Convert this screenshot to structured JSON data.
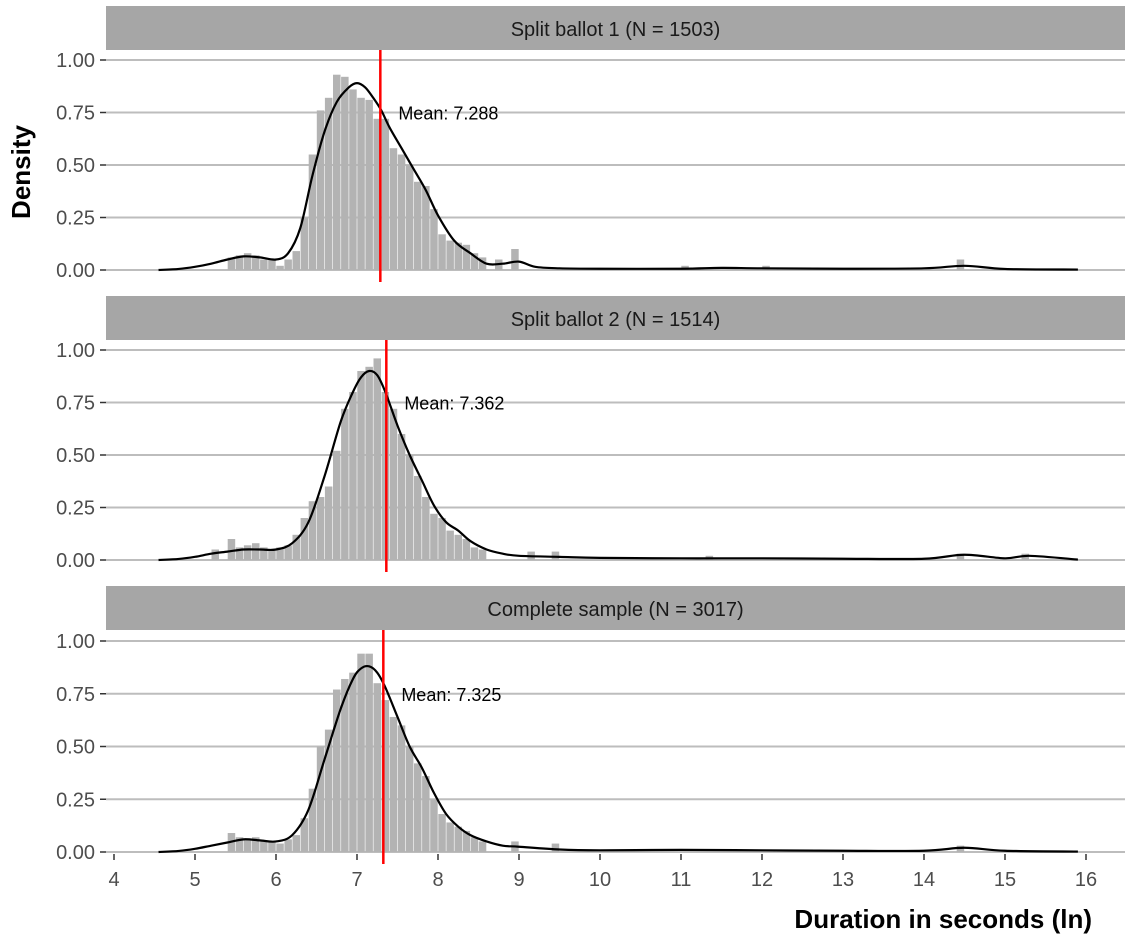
{
  "colors": {
    "strip": "#a6a6a6",
    "grid": "#bdbdbd",
    "bar": "#b3b3b3",
    "density": "#000000",
    "mean": "#ff0000"
  },
  "chart_data": {
    "type": "bar",
    "xlabel": "Duration in seconds (ln)",
    "ylabel": "Density",
    "xlim": [
      4,
      16
    ],
    "ylim": [
      0,
      1
    ],
    "x_ticks": [
      4,
      5,
      6,
      7,
      8,
      9,
      10,
      11,
      12,
      13,
      14,
      15,
      16
    ],
    "y_ticks": [
      0,
      0.25,
      0.5,
      0.75,
      1
    ],
    "y_tick_labels": [
      "0.00",
      "0.25",
      "0.50",
      "0.75",
      "1.00"
    ],
    "grid": "horizontal",
    "panels": [
      {
        "strip_label": "Split ballot 1 (N = 1503)",
        "mean": 7.288,
        "mean_label": "Mean: 7.288",
        "histogram": {
          "x": [
            5.45,
            5.55,
            5.65,
            5.75,
            5.85,
            5.95,
            6.05,
            6.15,
            6.25,
            6.35,
            6.45,
            6.55,
            6.65,
            6.75,
            6.85,
            6.95,
            7.05,
            7.15,
            7.25,
            7.35,
            7.45,
            7.55,
            7.65,
            7.75,
            7.85,
            7.95,
            8.05,
            8.15,
            8.25,
            8.35,
            8.45,
            8.55,
            8.75,
            8.95,
            11.05,
            12.05,
            14.45
          ],
          "values": [
            0.06,
            0.07,
            0.08,
            0.07,
            0.05,
            0.05,
            0.02,
            0.05,
            0.09,
            0.25,
            0.55,
            0.76,
            0.82,
            0.93,
            0.92,
            0.86,
            0.82,
            0.81,
            0.72,
            0.72,
            0.58,
            0.55,
            0.5,
            0.42,
            0.4,
            0.29,
            0.17,
            0.14,
            0.13,
            0.12,
            0.08,
            0.06,
            0.05,
            0.1,
            0.02,
            0.02,
            0.05
          ]
        },
        "density": {
          "x": [
            4.55,
            4.8,
            5.0,
            5.2,
            5.4,
            5.6,
            5.8,
            6.0,
            6.15,
            6.3,
            6.45,
            6.6,
            6.75,
            6.9,
            7.0,
            7.1,
            7.2,
            7.3,
            7.4,
            7.55,
            7.7,
            7.85,
            8.0,
            8.2,
            8.4,
            8.6,
            8.8,
            9.0,
            9.2,
            9.5,
            10.0,
            11.0,
            11.5,
            12.0,
            13.0,
            14.0,
            14.5,
            15.0,
            15.9
          ],
          "values": [
            0.0,
            0.005,
            0.015,
            0.03,
            0.05,
            0.065,
            0.06,
            0.05,
            0.08,
            0.2,
            0.45,
            0.66,
            0.8,
            0.87,
            0.89,
            0.87,
            0.82,
            0.76,
            0.68,
            0.58,
            0.48,
            0.38,
            0.26,
            0.14,
            0.08,
            0.03,
            0.03,
            0.04,
            0.015,
            0.008,
            0.006,
            0.006,
            0.01,
            0.008,
            0.006,
            0.008,
            0.02,
            0.005,
            0.002
          ]
        }
      },
      {
        "strip_label": "Split ballot 2 (N = 1514)",
        "mean": 7.362,
        "mean_label": "Mean: 7.362",
        "histogram": {
          "x": [
            5.25,
            5.45,
            5.55,
            5.65,
            5.75,
            5.85,
            5.95,
            6.05,
            6.15,
            6.25,
            6.35,
            6.45,
            6.55,
            6.65,
            6.75,
            6.85,
            6.95,
            7.05,
            7.15,
            7.25,
            7.35,
            7.45,
            7.55,
            7.65,
            7.75,
            7.85,
            7.95,
            8.05,
            8.15,
            8.25,
            8.35,
            8.45,
            8.55,
            9.15,
            9.45,
            11.35,
            14.45,
            15.25
          ],
          "values": [
            0.05,
            0.1,
            0.06,
            0.07,
            0.08,
            0.06,
            0.05,
            0.06,
            0.07,
            0.12,
            0.2,
            0.28,
            0.3,
            0.35,
            0.52,
            0.72,
            0.8,
            0.9,
            0.92,
            0.96,
            0.8,
            0.72,
            0.6,
            0.5,
            0.4,
            0.3,
            0.22,
            0.2,
            0.14,
            0.12,
            0.1,
            0.06,
            0.05,
            0.04,
            0.04,
            0.02,
            0.03,
            0.03
          ]
        },
        "density": {
          "x": [
            4.55,
            4.8,
            5.0,
            5.2,
            5.4,
            5.6,
            5.8,
            6.0,
            6.2,
            6.4,
            6.6,
            6.8,
            6.95,
            7.05,
            7.15,
            7.25,
            7.35,
            7.5,
            7.65,
            7.8,
            7.95,
            8.1,
            8.25,
            8.4,
            8.6,
            8.8,
            9.0,
            9.5,
            10.0,
            11.0,
            12.0,
            13.0,
            14.0,
            14.5,
            15.0,
            15.3,
            15.9
          ],
          "values": [
            0.0,
            0.005,
            0.015,
            0.03,
            0.04,
            0.05,
            0.05,
            0.05,
            0.08,
            0.18,
            0.4,
            0.66,
            0.8,
            0.87,
            0.9,
            0.88,
            0.8,
            0.64,
            0.5,
            0.38,
            0.26,
            0.18,
            0.14,
            0.09,
            0.05,
            0.03,
            0.02,
            0.015,
            0.01,
            0.008,
            0.008,
            0.006,
            0.006,
            0.025,
            0.008,
            0.02,
            0.002
          ]
        }
      },
      {
        "strip_label": "Complete sample (N = 3017)",
        "mean": 7.325,
        "mean_label": "Mean: 7.325",
        "histogram": {
          "x": [
            5.45,
            5.55,
            5.65,
            5.75,
            5.85,
            5.95,
            6.05,
            6.15,
            6.25,
            6.35,
            6.45,
            6.55,
            6.65,
            6.75,
            6.85,
            6.95,
            7.05,
            7.15,
            7.25,
            7.35,
            7.45,
            7.55,
            7.65,
            7.75,
            7.85,
            7.95,
            8.05,
            8.15,
            8.25,
            8.35,
            8.45,
            8.55,
            8.95,
            9.45,
            14.45
          ],
          "values": [
            0.09,
            0.07,
            0.06,
            0.07,
            0.05,
            0.05,
            0.04,
            0.06,
            0.08,
            0.16,
            0.3,
            0.5,
            0.58,
            0.77,
            0.82,
            0.85,
            0.94,
            0.94,
            0.8,
            0.72,
            0.64,
            0.6,
            0.5,
            0.42,
            0.36,
            0.25,
            0.18,
            0.14,
            0.12,
            0.1,
            0.07,
            0.05,
            0.05,
            0.04,
            0.03
          ]
        },
        "density": {
          "x": [
            4.55,
            4.8,
            5.0,
            5.2,
            5.4,
            5.6,
            5.8,
            6.0,
            6.2,
            6.4,
            6.6,
            6.8,
            6.95,
            7.05,
            7.15,
            7.25,
            7.35,
            7.5,
            7.65,
            7.8,
            7.95,
            8.1,
            8.25,
            8.4,
            8.6,
            8.8,
            9.0,
            9.5,
            10.0,
            11.0,
            12.0,
            13.0,
            14.0,
            14.5,
            15.0,
            15.9
          ],
          "values": [
            0.0,
            0.005,
            0.015,
            0.03,
            0.045,
            0.06,
            0.055,
            0.05,
            0.08,
            0.2,
            0.44,
            0.68,
            0.82,
            0.87,
            0.88,
            0.85,
            0.78,
            0.64,
            0.5,
            0.4,
            0.28,
            0.18,
            0.12,
            0.08,
            0.05,
            0.03,
            0.025,
            0.012,
            0.008,
            0.01,
            0.008,
            0.006,
            0.006,
            0.02,
            0.006,
            0.002
          ]
        }
      }
    ]
  }
}
